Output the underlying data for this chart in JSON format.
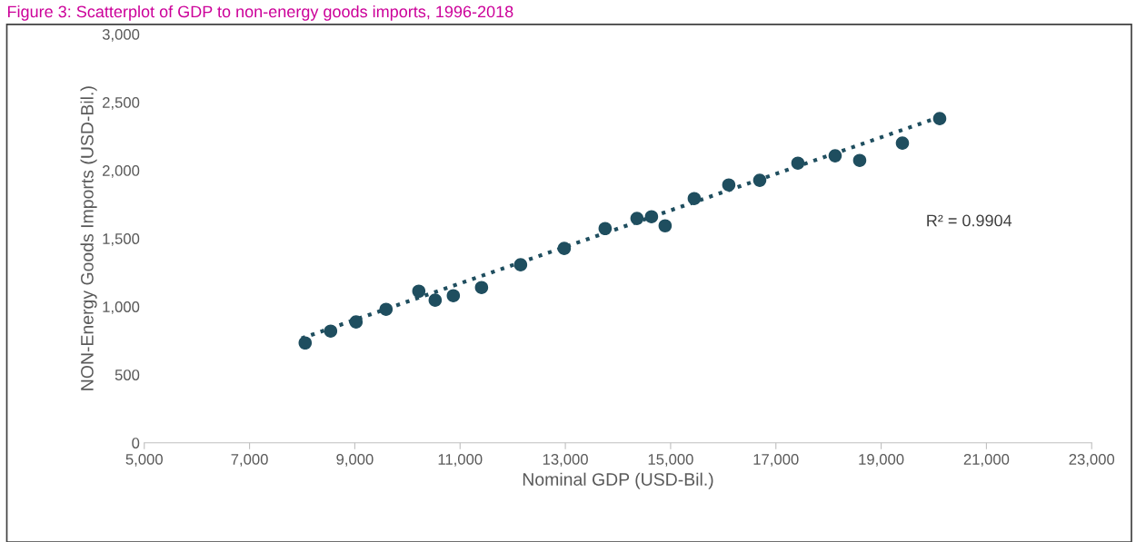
{
  "chart_data": {
    "type": "scatter",
    "title": "Figure 3: Scatterplot of GDP to non-energy goods imports, 1996-2018",
    "xlabel": "Nominal GDP (USD-Bil.)",
    "ylabel": "NON-Energy Goods Imports (USD-Bil.)",
    "x": [
      8057,
      8541,
      9024,
      9594,
      10216,
      10527,
      10872,
      11408,
      12150,
      12979,
      13756,
      14361,
      14637,
      14896,
      15449,
      16105,
      16693,
      17418,
      18126,
      18592,
      19404,
      20112
    ],
    "series": [
      {
        "color": "#1f4e5f",
        "values": [
          733,
          820,
          887,
          980,
          1113,
          1047,
          1080,
          1140,
          1307,
          1427,
          1573,
          1647,
          1660,
          1593,
          1793,
          1893,
          1927,
          2053,
          2107,
          2073,
          2200,
          2380
        ],
        "marker": "circle"
      },
      {
        "type": "line",
        "color": "#1f4e5f",
        "x": [
          7988,
          20077
        ],
        "values": [
          767,
          2387
        ],
        "line_style": "dotted",
        "marker": "none"
      }
    ],
    "annotations": [
      "R² = 0.9904"
    ],
    "xlim": [
      5000,
      23000
    ],
    "xticks": [
      {
        "value": 5000,
        "label": "5,000"
      },
      {
        "value": 7000,
        "label": "7,000"
      },
      {
        "value": 9000,
        "label": "9,000"
      },
      {
        "value": 11000,
        "label": "11,000"
      },
      {
        "value": 13000,
        "label": "13,000"
      },
      {
        "value": 15000,
        "label": "15,000"
      },
      {
        "value": 17000,
        "label": "17,000"
      },
      {
        "value": 19000,
        "label": "19,000"
      },
      {
        "value": 21000,
        "label": "21,000"
      },
      {
        "value": 23000,
        "label": "23,000"
      }
    ],
    "ylim": [
      0,
      3000
    ],
    "yticks": [
      0,
      500,
      {
        "value": 1000,
        "label": "1,000"
      },
      {
        "value": 1500,
        "label": "1,500"
      },
      {
        "value": 2000,
        "label": "2,000"
      },
      {
        "value": 2500,
        "label": "2,500"
      },
      {
        "value": 3000,
        "label": "3,000"
      }
    ],
    "grid": false,
    "legend": false
  }
}
